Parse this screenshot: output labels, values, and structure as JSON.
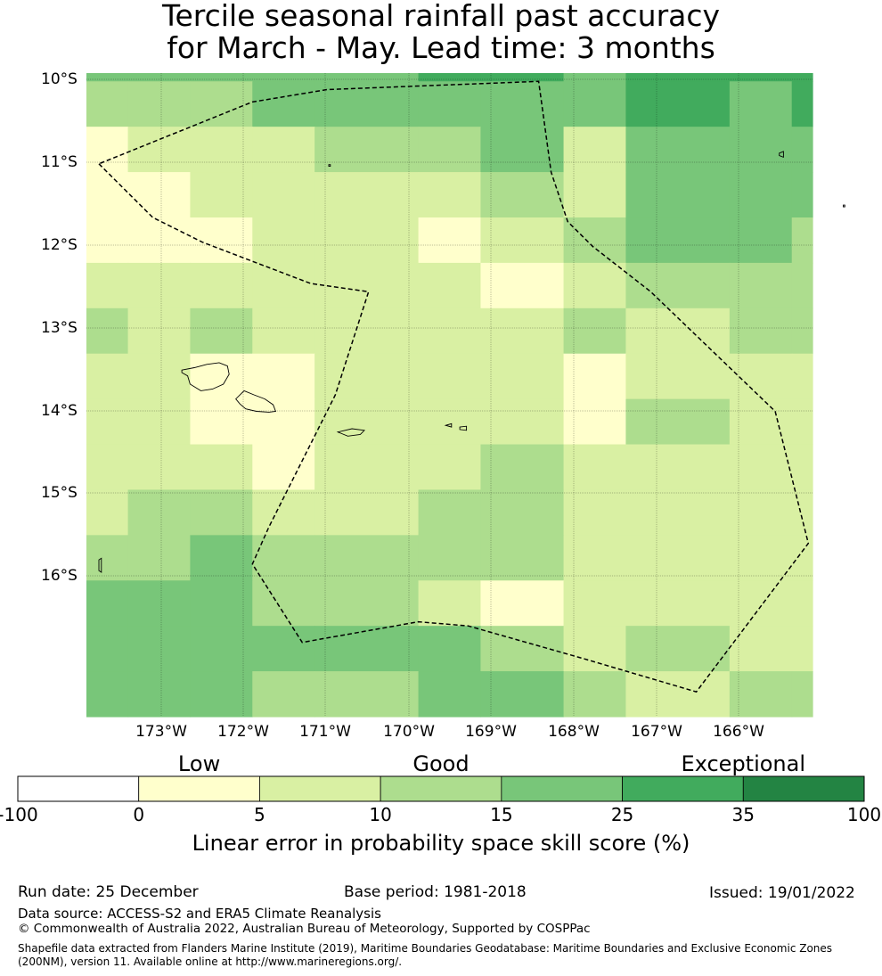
{
  "title": {
    "line1": "Tercile seasonal rainfall past accuracy",
    "line2": "for March - May. Lead time: 3 months"
  },
  "map": {
    "lat_labels": [
      "10°S",
      "11°S",
      "12°S",
      "13°S",
      "14°S",
      "15°S",
      "16°S"
    ],
    "lon_labels": [
      "173°W",
      "172°W",
      "171°W",
      "170°W",
      "169°W",
      "168°W",
      "167°W",
      "166°W"
    ],
    "lat_extent": [
      -17.75,
      -9.95
    ],
    "lon_extent": [
      -174.0,
      -165.25
    ],
    "cell_longitudes": [
      -173.75,
      -173.25,
      -172.5,
      -171.75,
      -170.75,
      -169.5,
      -168.75,
      -167.75,
      -166.75,
      -166.0,
      -165.5
    ],
    "cell_longitude_edges": [
      -174.0,
      -173.5,
      -172.75,
      -172.0,
      -171.25,
      -170.0,
      -169.25,
      -168.25,
      -167.5,
      -166.25,
      -165.5,
      -165.25
    ],
    "cell_latitudes": [
      -10.02,
      -10.4,
      -11.0,
      -11.55,
      -12.1,
      -12.65,
      -13.2,
      -13.75,
      -14.3,
      -14.85,
      -15.4,
      -15.95,
      -16.5,
      -17.05,
      -17.5
    ],
    "cell_latitude_edges": [
      -9.95,
      -10.05,
      -10.6,
      -11.15,
      -11.7,
      -12.25,
      -12.8,
      -13.35,
      -13.9,
      -14.45,
      -15.0,
      -15.55,
      -16.1,
      -16.65,
      -17.2,
      -17.75
    ],
    "cell_classes": [
      [
        3,
        3,
        3,
        3,
        3,
        4,
        4,
        3,
        4,
        4,
        4
      ],
      [
        2,
        2,
        2,
        3,
        3,
        3,
        3,
        3,
        4,
        3,
        4
      ],
      [
        0,
        1,
        1,
        1,
        2,
        2,
        3,
        1,
        3,
        3,
        3
      ],
      [
        0,
        0,
        1,
        1,
        1,
        1,
        2,
        1,
        3,
        3,
        3
      ],
      [
        0,
        0,
        0,
        1,
        1,
        0,
        1,
        2,
        3,
        3,
        2
      ],
      [
        1,
        1,
        1,
        1,
        1,
        1,
        0,
        1,
        2,
        2,
        2
      ],
      [
        2,
        1,
        2,
        1,
        1,
        1,
        1,
        2,
        1,
        2,
        2
      ],
      [
        1,
        1,
        0,
        0,
        1,
        1,
        1,
        0,
        1,
        1,
        1
      ],
      [
        1,
        1,
        0,
        0,
        1,
        1,
        1,
        0,
        2,
        1,
        1
      ],
      [
        1,
        1,
        1,
        0,
        1,
        1,
        2,
        1,
        1,
        1,
        1
      ],
      [
        1,
        2,
        2,
        1,
        1,
        2,
        2,
        1,
        1,
        1,
        1
      ],
      [
        2,
        2,
        3,
        2,
        2,
        2,
        2,
        1,
        1,
        1,
        1
      ],
      [
        3,
        3,
        3,
        2,
        2,
        1,
        0,
        1,
        1,
        1,
        1
      ],
      [
        3,
        3,
        3,
        3,
        3,
        3,
        2,
        1,
        2,
        1,
        1
      ],
      [
        3,
        3,
        3,
        2,
        2,
        3,
        3,
        2,
        1,
        2,
        2
      ]
    ],
    "eez_boundary": [
      [
        -173.85,
        -11.05
      ],
      [
        -173.2,
        -11.7
      ],
      [
        -172.6,
        -12.0
      ],
      [
        -171.3,
        -12.5
      ],
      [
        -170.6,
        -12.6
      ],
      [
        -171.0,
        -13.85
      ],
      [
        -171.8,
        -15.45
      ],
      [
        -172.0,
        -15.9
      ],
      [
        -171.4,
        -16.85
      ],
      [
        -170.0,
        -16.6
      ],
      [
        -169.4,
        -16.65
      ],
      [
        -168.0,
        -17.05
      ],
      [
        -166.65,
        -17.45
      ],
      [
        -165.3,
        -15.65
      ],
      [
        -165.7,
        -14.05
      ],
      [
        -167.2,
        -12.6
      ],
      [
        -167.9,
        -12.05
      ],
      [
        -168.2,
        -11.75
      ],
      [
        -168.4,
        -11.15
      ],
      [
        -168.55,
        -10.05
      ],
      [
        -171.1,
        -10.15
      ],
      [
        -172.0,
        -10.3
      ],
      [
        -173.85,
        -11.05
      ]
    ],
    "islands": {
      "upolu": [
        [
          -172.85,
          -13.55
        ],
        [
          -172.7,
          -13.52
        ],
        [
          -172.55,
          -13.48
        ],
        [
          -172.4,
          -13.46
        ],
        [
          -172.3,
          -13.5
        ],
        [
          -172.28,
          -13.6
        ],
        [
          -172.35,
          -13.72
        ],
        [
          -172.48,
          -13.78
        ],
        [
          -172.62,
          -13.8
        ],
        [
          -172.75,
          -13.72
        ],
        [
          -172.78,
          -13.62
        ],
        [
          -172.85,
          -13.58
        ],
        [
          -172.85,
          -13.55
        ]
      ],
      "savaii": [
        [
          -172.1,
          -13.8
        ],
        [
          -171.98,
          -13.85
        ],
        [
          -171.85,
          -13.9
        ],
        [
          -171.75,
          -13.97
        ],
        [
          -171.72,
          -14.05
        ],
        [
          -171.8,
          -14.06
        ],
        [
          -171.95,
          -14.05
        ],
        [
          -172.08,
          -14.02
        ],
        [
          -172.15,
          -13.96
        ],
        [
          -172.2,
          -13.9
        ],
        [
          -172.1,
          -13.8
        ]
      ],
      "tutuila": [
        [
          -170.97,
          -14.3
        ],
        [
          -170.8,
          -14.26
        ],
        [
          -170.65,
          -14.28
        ],
        [
          -170.7,
          -14.33
        ],
        [
          -170.85,
          -14.35
        ],
        [
          -170.97,
          -14.3
        ]
      ],
      "manua": [
        [
          -169.67,
          -14.22
        ],
        [
          -169.6,
          -14.2
        ],
        [
          -169.6,
          -14.24
        ],
        [
          -169.67,
          -14.22
        ]
      ],
      "tau": [
        [
          -169.5,
          -14.24
        ],
        [
          -169.42,
          -14.23
        ],
        [
          -169.42,
          -14.28
        ],
        [
          -169.5,
          -14.27
        ],
        [
          -169.5,
          -14.24
        ]
      ],
      "swains": [
        [
          -171.08,
          -11.06
        ],
        [
          -171.06,
          -11.06
        ],
        [
          -171.06,
          -11.08
        ],
        [
          -171.08,
          -11.08
        ],
        [
          -171.08,
          -11.06
        ]
      ],
      "nukunonu": [
        [
          -165.65,
          -10.92
        ],
        [
          -165.6,
          -10.9
        ],
        [
          -165.6,
          -10.97
        ],
        [
          -165.65,
          -10.95
        ],
        [
          -165.65,
          -10.92
        ]
      ],
      "fakaofo": [
        [
          -164.88,
          -11.55
        ],
        [
          -164.86,
          -11.55
        ],
        [
          -164.86,
          -11.57
        ],
        [
          -164.88,
          -11.57
        ],
        [
          -164.88,
          -11.55
        ]
      ],
      "rose": [
        [
          -173.85,
          -15.85
        ],
        [
          -173.82,
          -15.83
        ],
        [
          -173.82,
          -16.0
        ],
        [
          -173.85,
          -15.98
        ],
        [
          -173.85,
          -15.85
        ]
      ]
    }
  },
  "legend": {
    "categories": [
      {
        "label": "Low",
        "position_value": 2.5
      },
      {
        "label": "Good",
        "position_value": 12.5
      },
      {
        "label": "Exceptional",
        "position_value": 35
      }
    ],
    "ticks": [
      "-100",
      "0",
      "5",
      "10",
      "15",
      "25",
      "35",
      "100"
    ],
    "colors": [
      "#ffffff",
      "#ffffcc",
      "#d9f0a3",
      "#addd8e",
      "#78c679",
      "#41ab5d",
      "#238443"
    ],
    "label": "Linear error in probability space skill score (%)"
  },
  "footer": {
    "run_date": "Run date: 25 December",
    "base_period": "Base period: 1981-2018",
    "issued": "Issued: 19/01/2022",
    "data_source": "Data source: ACCESS-S2 and ERA5 Climate Reanalysis",
    "copyright": "© Commonwealth of Australia 2022, Australian Bureau of Meteorology, Supported by COSPPac",
    "shapefile_line1": "Shapefile data extracted from Flanders Marine Institute (2019), Maritime Boundaries Geodatabase: Maritime Boundaries and Exclusive Economic Zones",
    "shapefile_line2": "(200NM), version 11. Available online at http://www.marineregions.org/."
  }
}
